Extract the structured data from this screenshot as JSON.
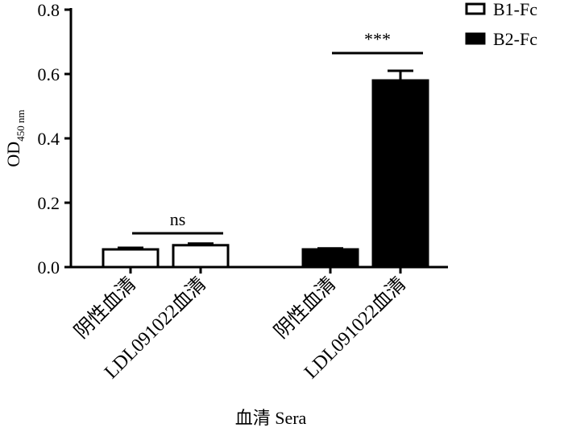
{
  "chart_data": {
    "type": "bar",
    "ylabel": "OD",
    "ylabel_sub": "450 nm",
    "xlabel": "血清 Sera",
    "categories": [
      "阴性血清",
      "LDL091022血清",
      "阴性血清",
      "LDL091022血清"
    ],
    "series": [
      {
        "name": "B1-Fc",
        "color": "#ffffff",
        "values": [
          0.055,
          0.068,
          null,
          null
        ],
        "errors": [
          0.005,
          0.005,
          null,
          null
        ]
      },
      {
        "name": "B2-Fc",
        "color": "#000000",
        "values": [
          null,
          null,
          0.055,
          0.58
        ],
        "errors": [
          null,
          null,
          0.003,
          0.03
        ]
      }
    ],
    "annotations": [
      "ns",
      "***"
    ],
    "ylim": [
      0,
      0.8
    ],
    "yticks": [
      {
        "value": 0,
        "label": "0.0"
      },
      0.2,
      0.4,
      0.6,
      0.8
    ],
    "legend": "upper right"
  }
}
